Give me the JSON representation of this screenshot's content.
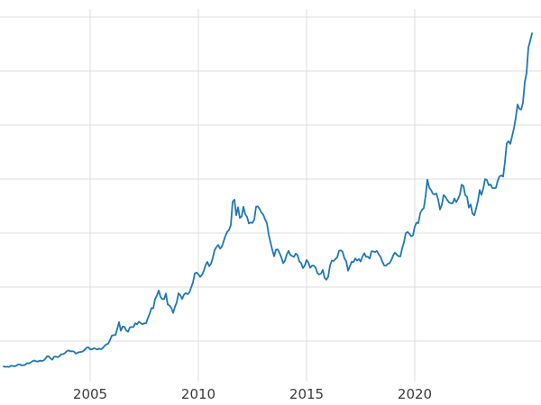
{
  "chart_data": {
    "type": "line",
    "title": "",
    "xlabel": "",
    "ylabel": "",
    "legend": "none",
    "grid": true,
    "line_color": "#1f77b4",
    "grid_color": "#dcdcdc",
    "background_color": "#ffffff",
    "tick_label_color": "#3a3a3a",
    "x_tick_labels": [
      "2005",
      "2010",
      "2015",
      "2020"
    ],
    "x_tick_years": [
      2005,
      2010,
      2015,
      2020
    ],
    "y_gridlines": [
      500,
      1000,
      1500,
      2000,
      2500,
      3000,
      3500
    ],
    "x_range_shown": [
      2000.833,
      2025.833
    ],
    "y_range_shown": [
      125,
      3575
    ],
    "x_start_year": 2001.0,
    "x_step_years": 0.0833333,
    "values": [
      265,
      262,
      263,
      260,
      272,
      270,
      267,
      272,
      283,
      283,
      276,
      276,
      281,
      295,
      294,
      302,
      314,
      321,
      313,
      310,
      319,
      317,
      319,
      333,
      357,
      359,
      340,
      328,
      355,
      357,
      351,
      360,
      379,
      379,
      389,
      407,
      414,
      405,
      407,
      403,
      384,
      392,
      398,
      400,
      405,
      420,
      439,
      442,
      424,
      423,
      434,
      429,
      422,
      431,
      424,
      437,
      456,
      470,
      476,
      510,
      550,
      555,
      557,
      611,
      676,
      596,
      634,
      632,
      599,
      586,
      627,
      630,
      631,
      665,
      655,
      679,
      667,
      656,
      665,
      665,
      713,
      755,
      806,
      803,
      890,
      922,
      968,
      910,
      889,
      889,
      940,
      839,
      829,
      807,
      761,
      816,
      859,
      943,
      924,
      890,
      929,
      946,
      934,
      949,
      997,
      1043,
      1127,
      1135,
      1118,
      1095,
      1113,
      1149,
      1205,
      1233,
      1193,
      1216,
      1271,
      1342,
      1370,
      1391,
      1356,
      1373,
      1424,
      1474,
      1512,
      1529,
      1573,
      1790,
      1810,
      1666,
      1739,
      1641,
      1654,
      1743,
      1674,
      1650,
      1589,
      1598,
      1594,
      1626,
      1744,
      1747,
      1722,
      1688,
      1671,
      1627,
      1593,
      1485,
      1414,
      1343,
      1286,
      1347,
      1348,
      1316,
      1276,
      1221,
      1244,
      1301,
      1336,
      1298,
      1288,
      1279,
      1311,
      1296,
      1238,
      1222,
      1176,
      1200,
      1251,
      1227,
      1178,
      1198,
      1199,
      1181,
      1130,
      1117,
      1125,
      1159,
      1086,
      1068,
      1097,
      1200,
      1246,
      1242,
      1260,
      1276,
      1337,
      1340,
      1327,
      1266,
      1238,
      1152,
      1192,
      1234,
      1231,
      1266,
      1246,
      1260,
      1237,
      1283,
      1314,
      1280,
      1282,
      1264,
      1331,
      1330,
      1325,
      1335,
      1303,
      1281,
      1238,
      1201,
      1198,
      1215,
      1221,
      1250,
      1292,
      1320,
      1301,
      1286,
      1284,
      1359,
      1413,
      1499,
      1511,
      1495,
      1471,
      1479,
      1561,
      1597,
      1592,
      1683,
      1716,
      1732,
      1843,
      1995,
      1922,
      1900,
      1866,
      1858,
      1867,
      1808,
      1718,
      1762,
      1853,
      1835,
      1807,
      1784,
      1777,
      1777,
      1820,
      1787,
      1817,
      1856,
      1948,
      1937,
      1850,
      1836,
      1736,
      1765,
      1681,
      1664,
      1726,
      1797,
      1898,
      1855,
      1913,
      2000,
      1992,
      1943,
      1951,
      1918,
      1916,
      1919,
      1984,
      2026,
      2034,
      2023,
      2160,
      2330,
      2351,
      2326,
      2398,
      2470,
      2568,
      2690,
      2651,
      2644,
      2708,
      2897,
      2984,
      3218,
      3280,
      3350
    ]
  }
}
